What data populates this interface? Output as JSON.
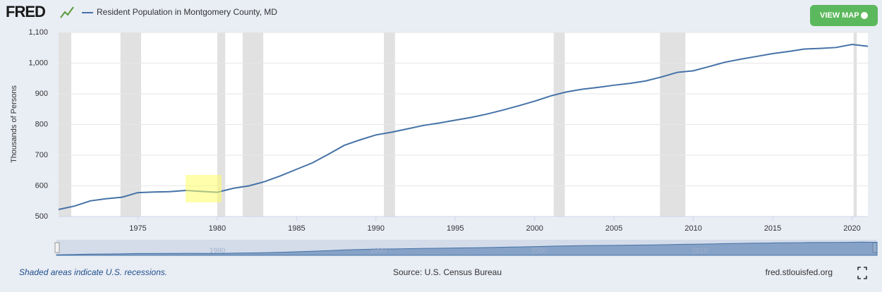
{
  "chart_data": {
    "type": "line",
    "logo": "FRED",
    "button": "VIEW MAP",
    "y_label": "Thousands of Persons",
    "recession_note": "Shaded areas indicate U.S. recessions.",
    "source": "Source: U.S. Census Bureau",
    "site": "fred.stlouisfed.org",
    "x": [
      1970,
      1971,
      1972,
      1973,
      1974,
      1975,
      1976,
      1977,
      1978,
      1979,
      1980,
      1981,
      1982,
      1983,
      1984,
      1985,
      1986,
      1987,
      1988,
      1989,
      1990,
      1991,
      1992,
      1993,
      1994,
      1995,
      1996,
      1997,
      1998,
      1999,
      2000,
      2001,
      2002,
      2003,
      2004,
      2005,
      2006,
      2007,
      2008,
      2009,
      2010,
      2011,
      2012,
      2013,
      2014,
      2015,
      2016,
      2017,
      2018,
      2019,
      2020,
      2021
    ],
    "series": [
      {
        "name": "Resident Population in Montgomery County, MD",
        "color": "#4572a7",
        "values": [
          523,
          534,
          551,
          558,
          563,
          578,
          580,
          581,
          585,
          582,
          579,
          592,
          600,
          614,
          633,
          654,
          675,
          703,
          732,
          750,
          766,
          775,
          786,
          797,
          805,
          814,
          823,
          834,
          847,
          861,
          876,
          893,
          906,
          915,
          921,
          928,
          934,
          942,
          955,
          970,
          975,
          989,
          1003,
          1013,
          1022,
          1031,
          1038,
          1046,
          1048,
          1051,
          1061,
          1055
        ]
      }
    ],
    "xlim": [
      1970,
      2021
    ],
    "ylim": [
      500,
      1100
    ],
    "xticks": [
      1975,
      1980,
      1985,
      1990,
      1995,
      2000,
      2005,
      2010,
      2015,
      2020
    ],
    "yticks": [
      500,
      600,
      700,
      800,
      900,
      {
        "value": 1000,
        "label": "1,000"
      },
      {
        "value": 1100,
        "label": "1,100"
      }
    ],
    "navigator_ticks": [
      1980,
      1990,
      2000,
      2010
    ],
    "recessions": [
      [
        1970,
        1970.8
      ],
      [
        1973.9,
        1975.2
      ],
      [
        1980,
        1980.5
      ],
      [
        1981.6,
        1982.9
      ],
      [
        1990.5,
        1991.2
      ],
      [
        2001.2,
        2001.9
      ],
      [
        2007.9,
        2009.5
      ],
      [
        2020.1,
        2020.3
      ]
    ],
    "grid": true
  }
}
